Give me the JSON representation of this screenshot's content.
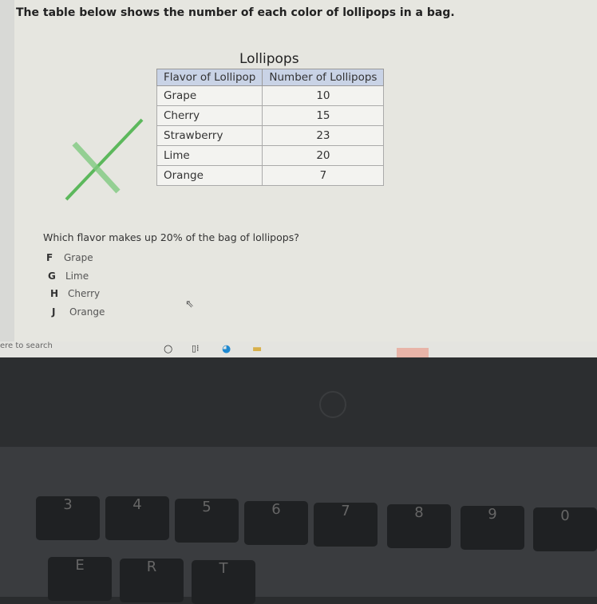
{
  "title": "The table below shows the number of each color of lollipops in a bag.",
  "table": {
    "caption": "Lollipops",
    "headers": [
      "Flavor of Lollipop",
      "Number of Lollipops"
    ],
    "rows": [
      [
        "Grape",
        "10"
      ],
      [
        "Cherry",
        "15"
      ],
      [
        "Strawberry",
        "23"
      ],
      [
        "Lime",
        "20"
      ],
      [
        "Orange",
        "7"
      ]
    ]
  },
  "question": "Which flavor makes up 20% of the bag of lollipops?",
  "options": [
    {
      "letter": "F",
      "text": "Grape"
    },
    {
      "letter": "G",
      "text": "Lime"
    },
    {
      "letter": "H",
      "text": "Cherry"
    },
    {
      "letter": "J",
      "text": "Orange"
    }
  ],
  "taskbar": {
    "search": "ere to search",
    "icons": [
      "cortana-icon",
      "task-view-icon",
      "edge-icon",
      "file-explorer-icon"
    ]
  },
  "keyboard": {
    "keys": [
      "3",
      "4",
      "5",
      "6",
      "7",
      "8",
      "9",
      "0",
      "E",
      "R",
      "T"
    ]
  }
}
